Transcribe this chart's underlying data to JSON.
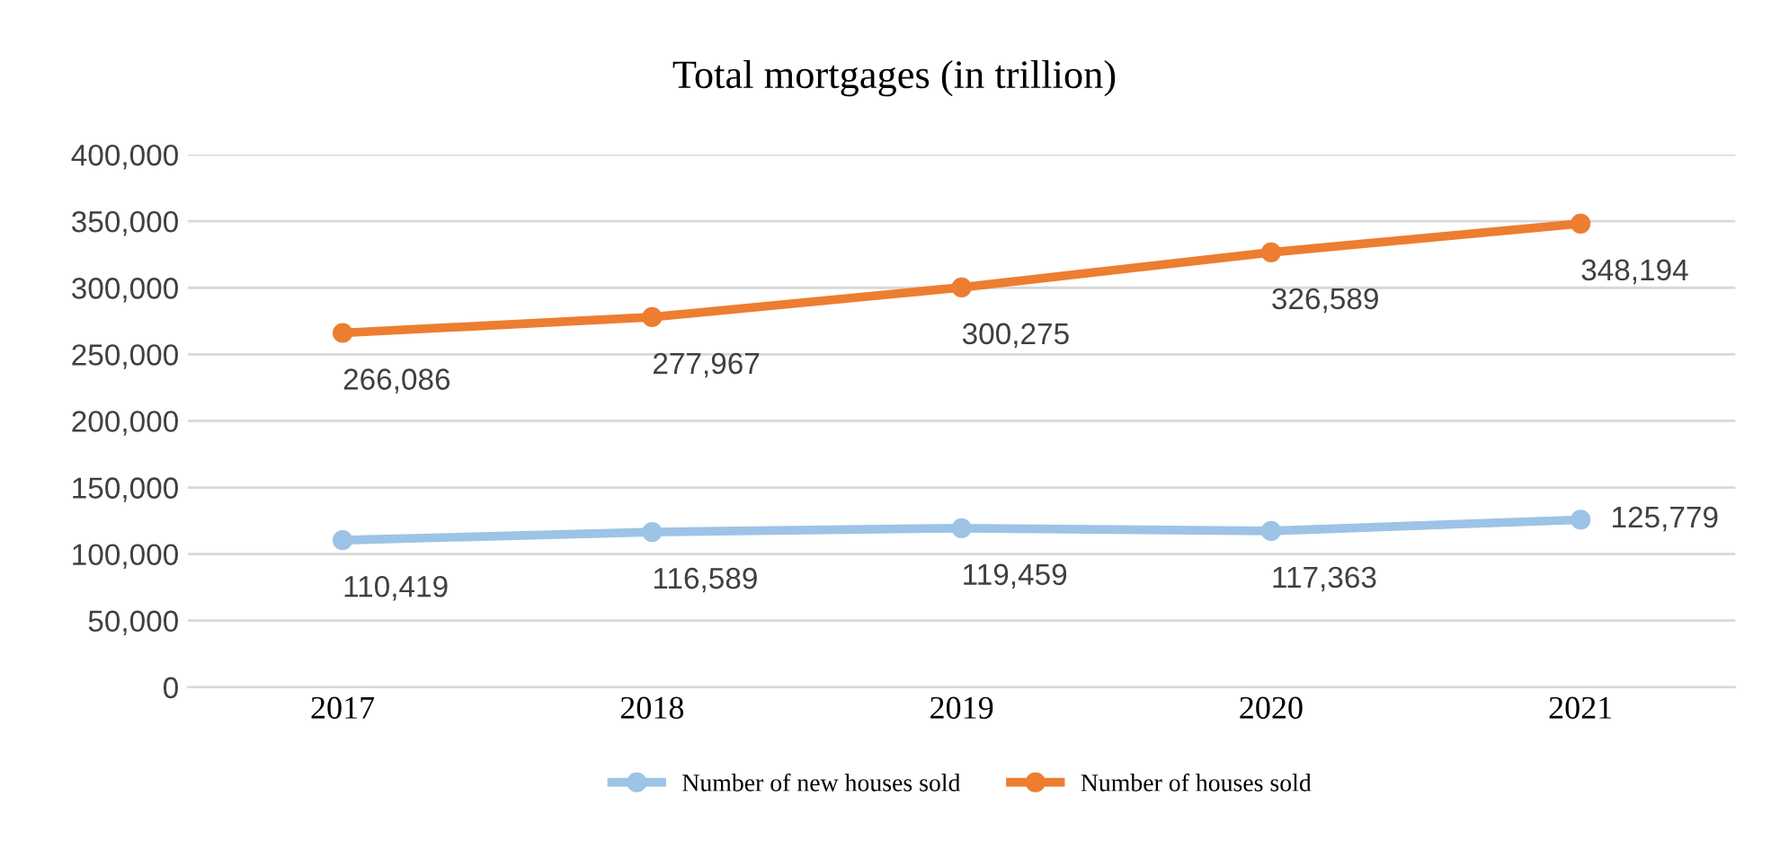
{
  "chart_data": {
    "type": "line",
    "title": "Total mortgages (in trillion)",
    "categories": [
      "2017",
      "2018",
      "2019",
      "2020",
      "2021"
    ],
    "series": [
      {
        "name": "Number of new houses sold",
        "color": "#9dc3e6",
        "values": [
          110419,
          116589,
          119459,
          117363,
          125779
        ],
        "value_labels": [
          "110,419",
          "116,589",
          "119,459",
          "117,363",
          "125,779"
        ]
      },
      {
        "name": "Number of houses sold",
        "color": "#ed7d31",
        "values": [
          266086,
          277967,
          300275,
          326589,
          348194
        ],
        "value_labels": [
          "266,086",
          "277,967",
          "300,275",
          "326,589",
          "348,194"
        ]
      }
    ],
    "ylim": [
      0,
      400000
    ],
    "yticks": [
      {
        "value": 0,
        "label": "0"
      },
      {
        "value": 50000,
        "label": "50,000"
      },
      {
        "value": 100000,
        "label": "100,000"
      },
      {
        "value": 150000,
        "label": "150,000"
      },
      {
        "value": 200000,
        "label": "200,000"
      },
      {
        "value": 250000,
        "label": "250,000"
      },
      {
        "value": 300000,
        "label": "300,000"
      },
      {
        "value": 350000,
        "label": "350,000"
      },
      {
        "value": 400000,
        "label": "400,000"
      }
    ],
    "grid": "y",
    "legend": "bottom",
    "marker": "circle",
    "line_style": "solid"
  }
}
